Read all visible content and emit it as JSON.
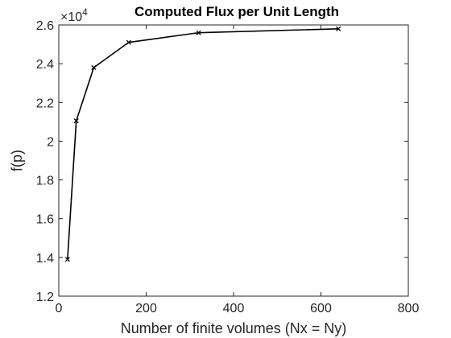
{
  "chart_data": {
    "type": "line",
    "title": "Computed Flux per Unit Length",
    "xlabel": "Number of finite volumes (Nx = Ny)",
    "ylabel": "f(p)",
    "y_multiplier_base": "×10",
    "y_multiplier_exp": "4",
    "xlim": [
      0,
      800
    ],
    "ylim": [
      1.2,
      2.6
    ],
    "x_ticks": [
      0,
      200,
      400,
      600,
      800
    ],
    "x_tick_labels": [
      "0",
      "200",
      "400",
      "600",
      "800"
    ],
    "y_ticks": [
      1.2,
      1.4,
      1.6,
      1.8,
      2.0,
      2.2,
      2.4,
      2.6
    ],
    "y_tick_labels": [
      "1.2",
      "1.4",
      "1.6",
      "1.8",
      "2",
      "2.2",
      "2.4",
      "2.6"
    ],
    "grid": false,
    "marker": "x",
    "line_color": "#000000",
    "series": [
      {
        "x": [
          20,
          40,
          80,
          160,
          320,
          640
        ],
        "y": [
          1.39,
          2.105,
          2.38,
          2.51,
          2.56,
          2.58
        ]
      }
    ]
  }
}
